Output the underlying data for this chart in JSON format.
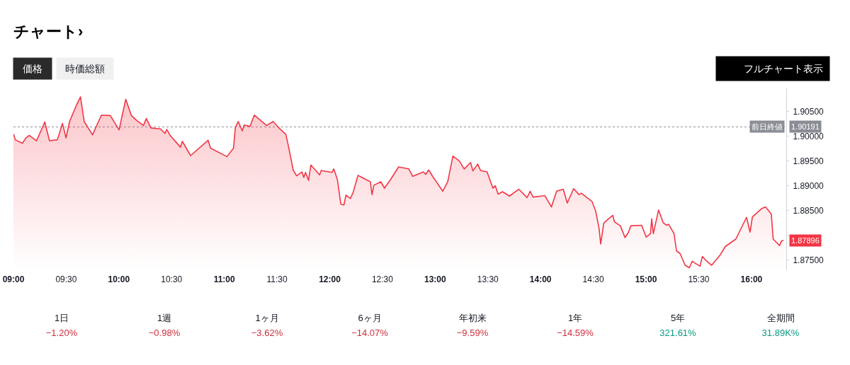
{
  "chart_data": [
    {
      "type": "area",
      "title": "チャート›",
      "color": "#f23645",
      "x": [
        9.0,
        9.018,
        9.085,
        9.119,
        9.15,
        9.219,
        9.297,
        9.342,
        9.416,
        9.465,
        9.499,
        9.532,
        9.599,
        9.636,
        9.671,
        9.75,
        9.834,
        9.919,
        10.002,
        10.036,
        10.065,
        10.119,
        10.17,
        10.233,
        10.26,
        10.304,
        10.394,
        10.438,
        10.454,
        10.483,
        10.584,
        10.602,
        10.68,
        10.846,
        10.87,
        11.025,
        11.087,
        11.105,
        11.132,
        11.17,
        11.188,
        11.244,
        11.284,
        11.401,
        11.463,
        11.523,
        11.584,
        11.613,
        11.653,
        11.685,
        11.736,
        11.754,
        11.77,
        11.799,
        11.821,
        11.904,
        11.919,
        12.022,
        12.038,
        12.072,
        12.105,
        12.134,
        12.154,
        12.195,
        12.221,
        12.268,
        12.385,
        12.401,
        12.418,
        12.485,
        12.519,
        12.575,
        12.653,
        12.75,
        12.787,
        12.888,
        12.911,
        12.938,
        12.982,
        13.072,
        13.119,
        13.168,
        13.23,
        13.275,
        13.336,
        13.358,
        13.403,
        13.43,
        13.492,
        13.548,
        13.57,
        13.597,
        13.638,
        13.705,
        13.794,
        13.872,
        13.901,
        13.928,
        14.04,
        14.103,
        14.152,
        14.215,
        14.253,
        14.313,
        14.365,
        14.387,
        14.488,
        14.522,
        14.555,
        14.57,
        14.599,
        14.638,
        14.685,
        14.7,
        14.756,
        14.801,
        14.834,
        14.857,
        14.958,
        15.002,
        15.042,
        15.054,
        15.069,
        15.119,
        15.163,
        15.193,
        15.215,
        15.266,
        15.289,
        15.322,
        15.371,
        15.411,
        15.438,
        15.512,
        15.535,
        15.562,
        15.622,
        15.707,
        15.752,
        15.852,
        15.953,
        15.987,
        16.009,
        16.099,
        16.133,
        16.188,
        16.206,
        16.267,
        16.284,
        16.304
      ],
      "values": [
        1.9005,
        1.8993,
        1.8986,
        1.8997,
        1.9002,
        1.8991,
        1.9029,
        1.8991,
        1.8993,
        1.9026,
        1.8997,
        1.903,
        1.9064,
        1.908,
        1.903,
        1.9003,
        1.9043,
        1.9042,
        1.9013,
        1.9047,
        1.9075,
        1.9042,
        1.9032,
        1.9022,
        1.9036,
        1.9017,
        1.9015,
        1.9006,
        1.9014,
        1.9003,
        1.8978,
        1.899,
        1.8961,
        1.8992,
        1.8976,
        1.8959,
        1.8976,
        1.9018,
        1.903,
        1.9011,
        1.9023,
        1.902,
        1.9043,
        1.9022,
        1.903,
        1.9016,
        1.9004,
        1.8975,
        1.8932,
        1.892,
        1.8928,
        1.8917,
        1.8927,
        1.8911,
        1.8942,
        1.8922,
        1.8931,
        1.8927,
        1.8934,
        1.8913,
        1.8863,
        1.8861,
        1.8881,
        1.8874,
        1.8886,
        1.8921,
        1.8908,
        1.8882,
        1.8901,
        1.8908,
        1.8895,
        1.8912,
        1.8938,
        1.8934,
        1.8919,
        1.8928,
        1.8923,
        1.8932,
        1.8917,
        1.8889,
        1.8908,
        1.896,
        1.895,
        1.8934,
        1.8947,
        1.893,
        1.8944,
        1.8931,
        1.8928,
        1.8895,
        1.89,
        1.8883,
        1.8888,
        1.8879,
        1.8893,
        1.8876,
        1.8889,
        1.8877,
        1.888,
        1.8857,
        1.8889,
        1.8893,
        1.8865,
        1.8894,
        1.8882,
        1.8885,
        1.8868,
        1.8849,
        1.8813,
        1.8782,
        1.8824,
        1.8832,
        1.884,
        1.8827,
        1.8819,
        1.8795,
        1.8806,
        1.8819,
        1.882,
        1.8796,
        1.8803,
        1.8833,
        1.8803,
        1.8851,
        1.8825,
        1.882,
        1.8822,
        1.8803,
        1.8768,
        1.8763,
        1.8739,
        1.8734,
        1.8747,
        1.8737,
        1.8757,
        1.875,
        1.8739,
        1.8761,
        1.8777,
        1.8792,
        1.8836,
        1.8806,
        1.8837,
        1.8854,
        1.8857,
        1.8843,
        1.8792,
        1.8779,
        1.8788,
        1.87896
      ],
      "value_labels": [
        null,
        null,
        null,
        null,
        null,
        null,
        null,
        null,
        null,
        null,
        null,
        null,
        null,
        null,
        null,
        null,
        null,
        null,
        null,
        null,
        null,
        null,
        null,
        null,
        null,
        null,
        null,
        null,
        null,
        null,
        null,
        null,
        null,
        null,
        null,
        null,
        null,
        null,
        null,
        null,
        null,
        null,
        null,
        null,
        null,
        null,
        null,
        null,
        null,
        null,
        null,
        null,
        null,
        null,
        null,
        null,
        null,
        null,
        null,
        null,
        null,
        null,
        null,
        null,
        null,
        null,
        null,
        null,
        null,
        null,
        null,
        null,
        null,
        null,
        null,
        null,
        null,
        null,
        null,
        null,
        null,
        null,
        null,
        null,
        null,
        null,
        null,
        null,
        null,
        null,
        null,
        null,
        null,
        null,
        null,
        null,
        null,
        null,
        null,
        null,
        null,
        null,
        null,
        null,
        null,
        null,
        null,
        null,
        null,
        null,
        null,
        null,
        null,
        null,
        null,
        null,
        null,
        null,
        null,
        null,
        null,
        null,
        null,
        null,
        null,
        null,
        null,
        null,
        null,
        null,
        null,
        null,
        null,
        null,
        null,
        null,
        null,
        null,
        null,
        null,
        null,
        null,
        null,
        null,
        null,
        null,
        null,
        null,
        null,
        "1.87896"
      ],
      "xlim": [
        9,
        16.33
      ],
      "xticks": [
        {
          "value": 9,
          "label": "09:00"
        },
        {
          "value": 9.5,
          "label": "09:30"
        },
        {
          "value": 10,
          "label": "10:00"
        },
        {
          "value": 10.5,
          "label": "10:30"
        },
        {
          "value": 11,
          "label": "11:00"
        },
        {
          "value": 11.5,
          "label": "11:30"
        },
        {
          "value": 12,
          "label": "12:00"
        },
        {
          "value": 12.5,
          "label": "12:30"
        },
        {
          "value": 13,
          "label": "13:00"
        },
        {
          "value": 13.5,
          "label": "13:30"
        },
        {
          "value": 14,
          "label": "14:00"
        },
        {
          "value": 14.5,
          "label": "14:30"
        },
        {
          "value": 15,
          "label": "15:00"
        },
        {
          "value": 15.5,
          "label": "15:30"
        },
        {
          "value": 16,
          "label": "16:00"
        }
      ],
      "ylim": [
        1.8729,
        1.9097
      ],
      "yticks": [
        {
          "value": 1.875,
          "label": "1.87500"
        },
        {
          "value": 1.88,
          "label": null
        },
        {
          "value": 1.885,
          "label": "1.88500"
        },
        {
          "value": 1.89,
          "label": "1.89000"
        },
        {
          "value": 1.895,
          "label": "1.89500"
        },
        {
          "value": 1.9,
          "label": "1.90000"
        },
        {
          "value": 1.905,
          "label": "1.90500"
        }
      ],
      "ref_lines": [
        {
          "axis": "y",
          "value": 1.90191,
          "label": "前日終値",
          "color": "#8a8d96",
          "line_style": "dotted"
        }
      ],
      "annotations": [
        "価格",
        "時価総額",
        "フルチャート表示",
        "1.90191"
      ]
    },
    {
      "type": "other",
      "categories": [
        "1日",
        "1週",
        "1ヶ月",
        "6ヶ月",
        "年初来",
        "1年",
        "5年",
        "全期間"
      ],
      "values": [
        -1.2,
        -0.98,
        -3.62,
        -14.07,
        -9.59,
        -14.59,
        321.61,
        31890
      ],
      "value_labels": [
        "−1.20%",
        "−0.98%",
        "−3.62%",
        "−14.07%",
        "−9.59%",
        "−14.59%",
        "321.61%",
        "31.89K%"
      ],
      "colors": [
        "#cc2f3c",
        "#cc2f3c",
        "#cc2f3c",
        "#cc2f3c",
        "#cc2f3c",
        "#cc2f3c",
        "#089981",
        "#089981"
      ]
    }
  ]
}
